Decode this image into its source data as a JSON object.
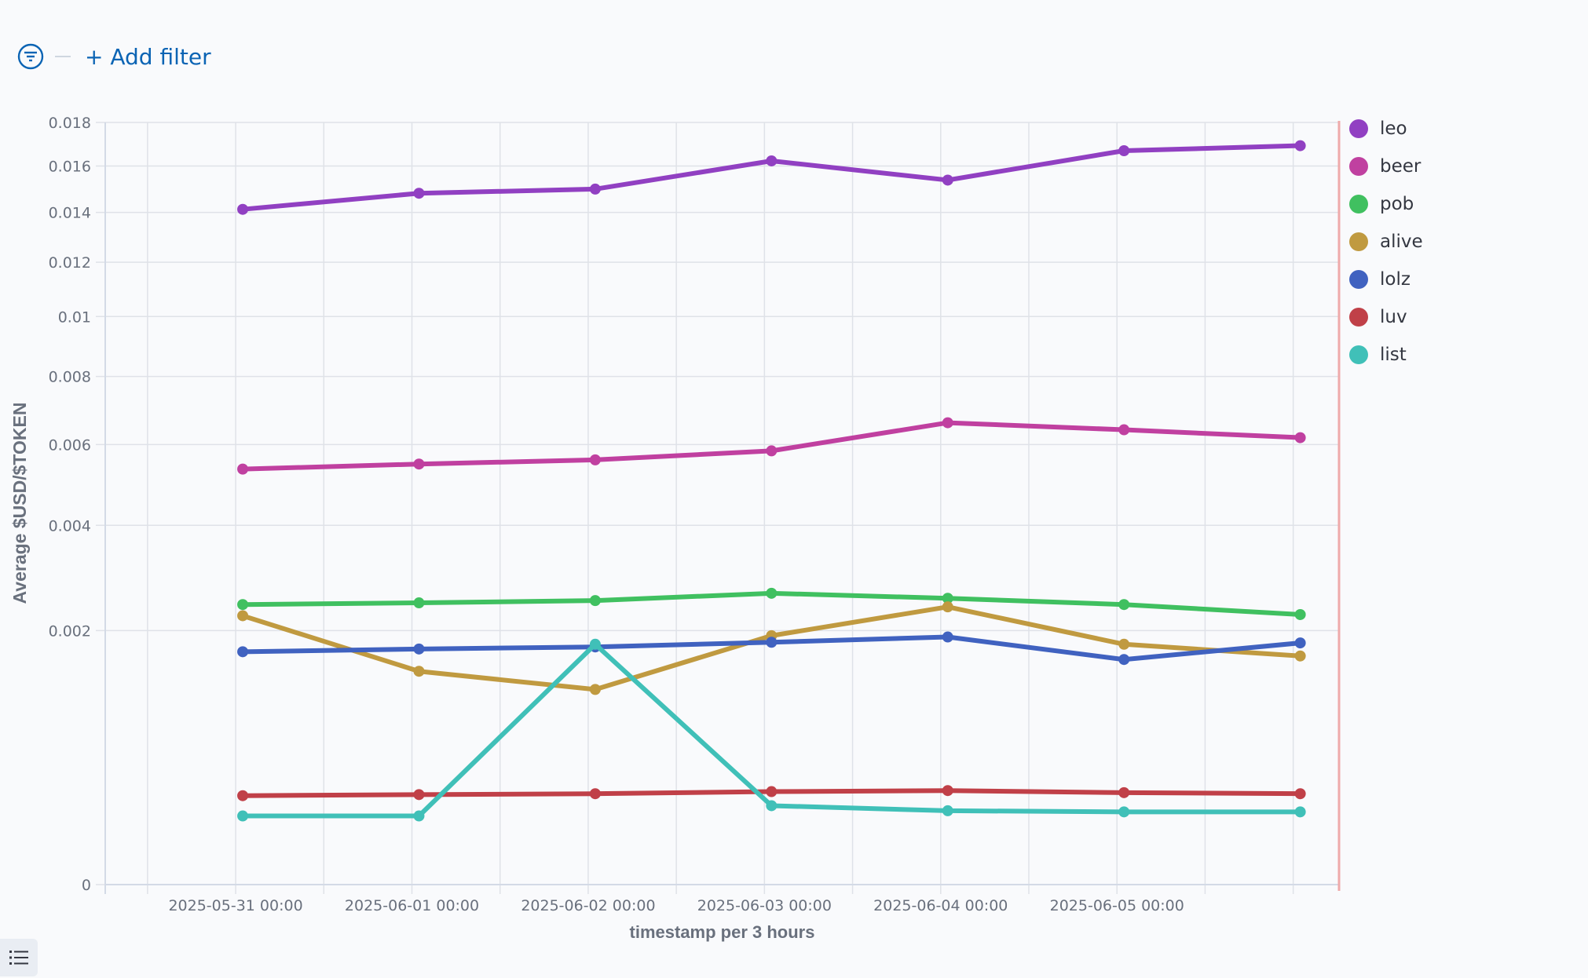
{
  "filter": {
    "add_label": "+ Add filter"
  },
  "chart_data": {
    "type": "line",
    "title": "",
    "xlabel": "timestamp per 3 hours",
    "ylabel": "Average $USD/$TOKEN",
    "y_scale": "sqrt",
    "ylim": [
      0,
      0.018
    ],
    "yticks": [
      0,
      0.002,
      0.004,
      0.006,
      0.008,
      0.01,
      0.012,
      0.014,
      0.016,
      0.018
    ],
    "ytick_labels": [
      "0",
      "0.002",
      "0.004",
      "0.006",
      "0.008",
      "0.01",
      "0.012",
      "0.014",
      "0.016",
      "0.018"
    ],
    "x_unit": "days since 2025-05-31 00:00",
    "xlim": [
      -0.74,
      6.26
    ],
    "xticks": [
      0,
      1,
      2,
      3,
      4,
      5
    ],
    "xtick_labels": [
      "2025-05-31 00:00",
      "2025-06-01 00:00",
      "2025-06-02 00:00",
      "2025-06-03 00:00",
      "2025-06-04 00:00",
      "2025-06-05 00:00"
    ],
    "grid": true,
    "legend_position": "right",
    "x": [
      0.04,
      1.04,
      2.04,
      3.04,
      4.04,
      5.04,
      6.04
    ],
    "series": [
      {
        "name": "leo",
        "color": "#9140c2",
        "values": [
          0.01413,
          0.01481,
          0.01499,
          0.01623,
          0.01538,
          0.01669,
          0.01692
        ]
      },
      {
        "name": "beer",
        "color": "#c040a0",
        "values": [
          0.00535,
          0.00548,
          0.00559,
          0.00583,
          0.00661,
          0.00641,
          0.00619
        ]
      },
      {
        "name": "pob",
        "color": "#40c060",
        "values": [
          0.00243,
          0.00246,
          0.0025,
          0.00263,
          0.00254,
          0.00243,
          0.00226
        ]
      },
      {
        "name": "alive",
        "color": "#c09a40",
        "values": [
          0.00224,
          0.00141,
          0.00118,
          0.00192,
          0.00239,
          0.00179,
          0.00162
        ]
      },
      {
        "name": "lolz",
        "color": "#4062c0",
        "values": [
          0.00168,
          0.00172,
          0.00175,
          0.00182,
          0.0019,
          0.00157,
          0.00181
        ]
      },
      {
        "name": "luv",
        "color": "#c04048",
        "values": [
          0.000245,
          0.000251,
          0.000256,
          0.000268,
          0.000274,
          0.000262,
          0.000256
        ]
      },
      {
        "name": "list",
        "color": "#40c0b8",
        "values": [
          0.000146,
          0.000146,
          0.00179,
          0.000193,
          0.000169,
          0.000164,
          0.000164
        ]
      }
    ]
  }
}
